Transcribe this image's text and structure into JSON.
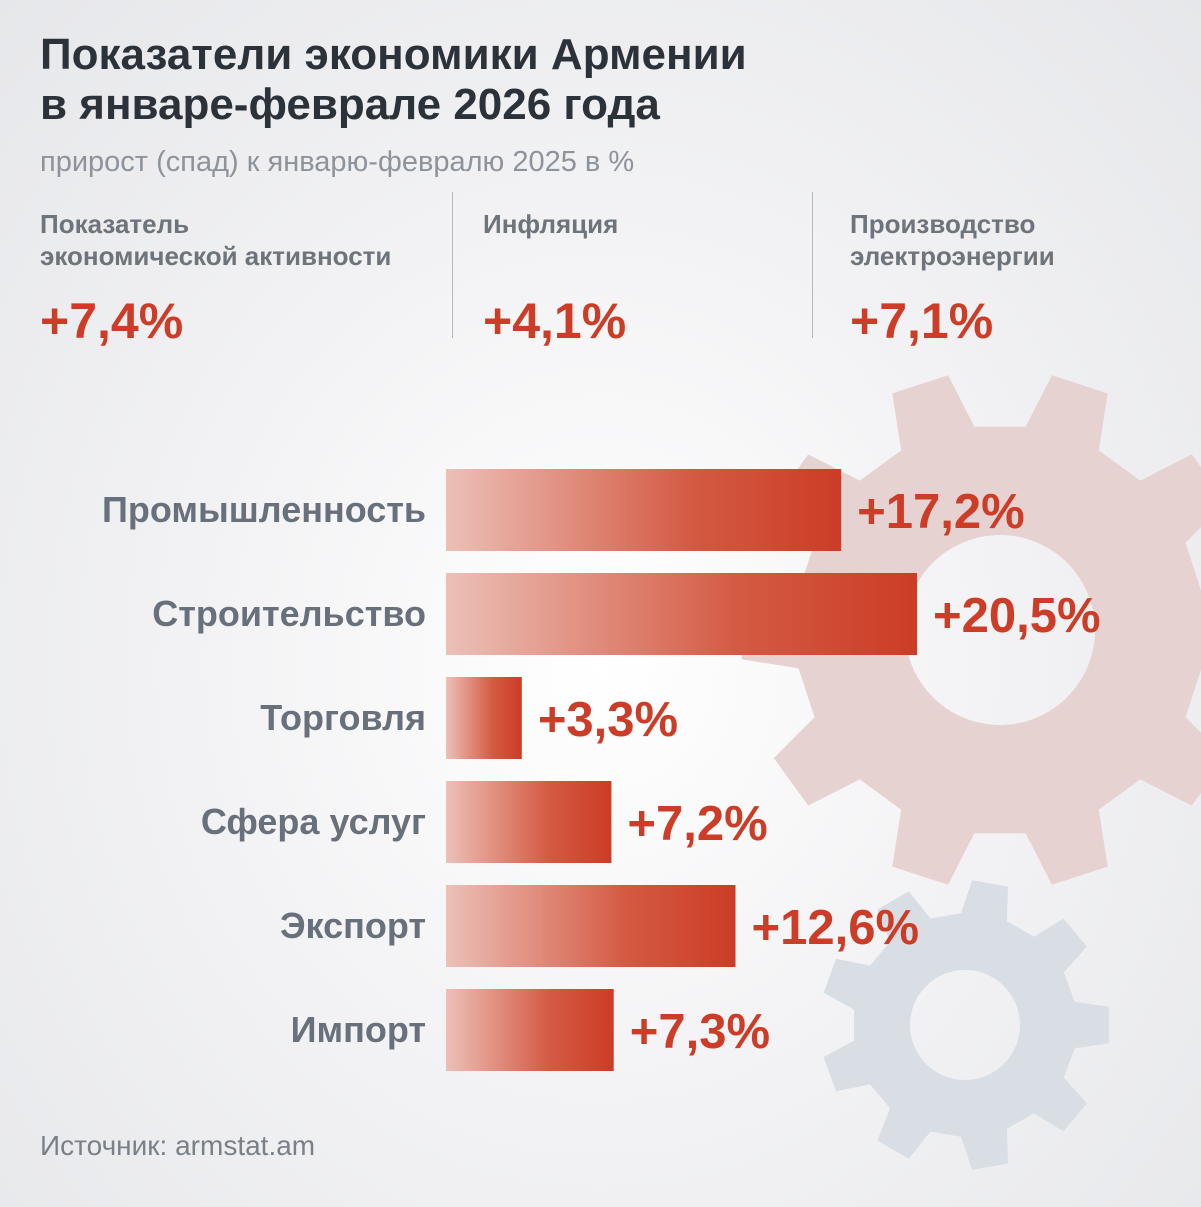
{
  "title_lines": [
    "Показатели экономики Армении",
    "в январе-феврале 2026 года"
  ],
  "subtitle": "прирост (спад) к январю-февралю 2025 в %",
  "kpis": [
    {
      "label_lines": [
        "Показатель",
        "экономической активности"
      ],
      "value": "+7,4%"
    },
    {
      "label_lines": [
        "Инфляция",
        ""
      ],
      "value": "+4,1%"
    },
    {
      "label_lines": [
        "Производство",
        "электроэнергии"
      ],
      "value": "+7,1%"
    }
  ],
  "chart_data": {
    "type": "bar",
    "orientation": "horizontal",
    "title": "",
    "xlabel": "",
    "ylabel": "",
    "categories": [
      "Промышленность",
      "Строительство",
      "Торговля",
      "Сфера услуг",
      "Экспорт",
      "Импорт"
    ],
    "values": [
      17.2,
      20.5,
      3.3,
      7.2,
      12.6,
      7.3
    ],
    "value_labels": [
      "+17,2%",
      "+20,5%",
      "+3,3%",
      "+7,2%",
      "+12,6%",
      "+7,3%"
    ],
    "xlim": [
      0,
      20.5
    ],
    "grid": false
  },
  "colors": {
    "bar_start": "#ecc0b8",
    "bar_end": "#cc3c26",
    "value_text": "#cc3c26",
    "category_text": "#68717b",
    "title_text": "#2b323a",
    "gear_red": "#e7d2d2",
    "gear_blue": "#d9dee5"
  },
  "source": "Источник: armstat.am"
}
